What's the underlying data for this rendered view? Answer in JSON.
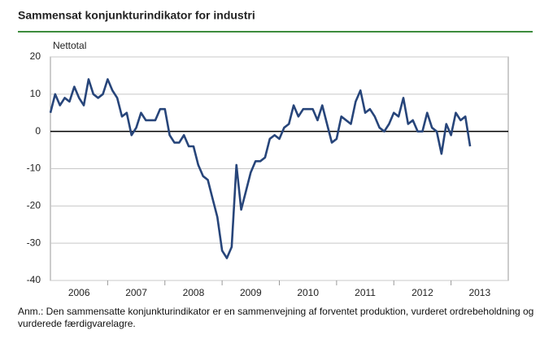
{
  "chart_data": {
    "type": "line",
    "title": "Sammensat konjunkturindikator for industri",
    "y_label": "Nettotal",
    "note": "Anm.: Den sammensatte konjunkturindikator er en sammenvejning af forventet produktion, vurderet ordrebeholdning og vurderede færdigvarelagre.",
    "x": [
      2006,
      2006.083,
      2006.167,
      2006.25,
      2006.333,
      2006.417,
      2006.5,
      2006.583,
      2006.667,
      2006.75,
      2006.833,
      2006.917,
      2007,
      2007.083,
      2007.167,
      2007.25,
      2007.333,
      2007.417,
      2007.5,
      2007.583,
      2007.667,
      2007.75,
      2007.833,
      2007.917,
      2008,
      2008.083,
      2008.167,
      2008.25,
      2008.333,
      2008.417,
      2008.5,
      2008.583,
      2008.667,
      2008.75,
      2008.833,
      2008.917,
      2009,
      2009.083,
      2009.167,
      2009.25,
      2009.333,
      2009.417,
      2009.5,
      2009.583,
      2009.667,
      2009.75,
      2009.833,
      2009.917,
      2010,
      2010.083,
      2010.167,
      2010.25,
      2010.333,
      2010.417,
      2010.5,
      2010.583,
      2010.667,
      2010.75,
      2010.833,
      2010.917,
      2011,
      2011.083,
      2011.167,
      2011.25,
      2011.333,
      2011.417,
      2011.5,
      2011.583,
      2011.667,
      2011.75,
      2011.833,
      2011.917,
      2012,
      2012.083,
      2012.167,
      2012.25,
      2012.333,
      2012.417,
      2012.5,
      2012.583,
      2012.667,
      2012.75,
      2012.833,
      2012.917,
      2013,
      2013.083,
      2013.167,
      2013.25,
      2013.333
    ],
    "series": [
      {
        "name": "Sammensat konjunkturindikator",
        "color": "#27457a",
        "values": [
          5,
          10,
          7,
          9,
          8,
          12,
          9,
          7,
          14,
          10,
          9,
          10,
          14,
          11,
          9,
          4,
          5,
          -1,
          1,
          5,
          3,
          3,
          3,
          6,
          6,
          -1,
          -3,
          -3,
          -1,
          -4,
          -4,
          -9,
          -12,
          -13,
          -18,
          -23,
          -32,
          -34,
          -31,
          -9,
          -21,
          -16,
          -11,
          -8,
          -8,
          -7,
          -2,
          -1,
          -2,
          1,
          2,
          7,
          4,
          6,
          6,
          6,
          3,
          7,
          2,
          -3,
          -2,
          4,
          3,
          2,
          8,
          11,
          5,
          6,
          4,
          1,
          0,
          2,
          5,
          4,
          9,
          2,
          3,
          0,
          0,
          5,
          1,
          0,
          -6,
          2,
          -1,
          5,
          3,
          4,
          -4
        ]
      }
    ],
    "xlim": [
      2006,
      2014
    ],
    "xticks": [
      {
        "value": 2006.5,
        "label": "2006"
      },
      {
        "value": 2007.5,
        "label": "2007"
      },
      {
        "value": 2008.5,
        "label": "2008"
      },
      {
        "value": 2009.5,
        "label": "2009"
      },
      {
        "value": 2010.5,
        "label": "2010"
      },
      {
        "value": 2011.5,
        "label": "2011"
      },
      {
        "value": 2012.5,
        "label": "2012"
      },
      {
        "value": 2013.5,
        "label": "2013"
      }
    ],
    "ylim": [
      -40,
      20
    ],
    "yticks": [
      -40,
      -30,
      -20,
      -10,
      0,
      10,
      20
    ],
    "grid": true
  }
}
